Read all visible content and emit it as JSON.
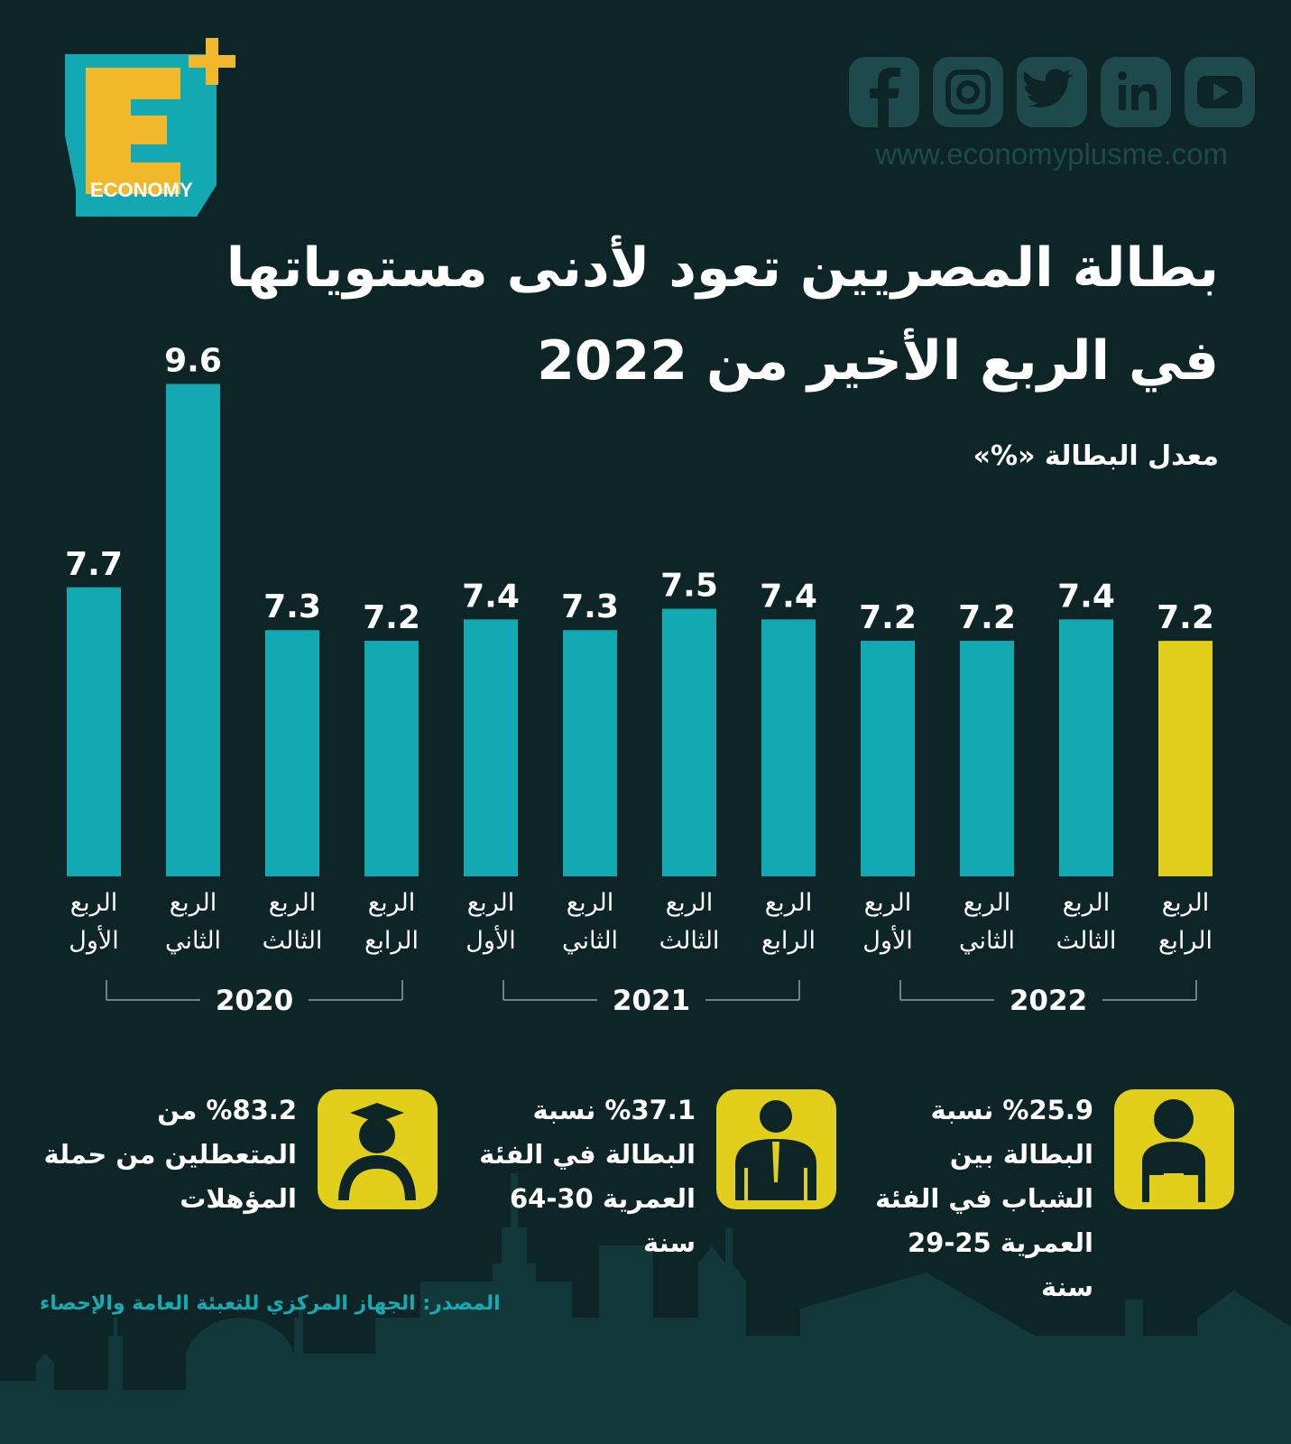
{
  "header": {
    "logo_text": "ECONOMY",
    "url": "www.economyplusme.com"
  },
  "chart_data": {
    "type": "bar",
    "title": [
      "بطالة المصريين تعود لأدنى مستوياتها",
      "في الربع الأخير من 2022"
    ],
    "subtitle": "معدل البطالة «%»",
    "categories": [
      "الربع الأول",
      "الربع الثاني",
      "الربع الثالث",
      "الربع الرابع",
      "الربع الأول",
      "الربع الثاني",
      "الربع الثالث",
      "الربع الرابع",
      "الربع الأول",
      "الربع الثاني",
      "الربع الثالث",
      "الربع الرابع"
    ],
    "group_labels": [
      "2020",
      "2021",
      "2022"
    ],
    "values": [
      7.7,
      9.6,
      7.3,
      7.2,
      7.4,
      7.3,
      7.5,
      7.4,
      7.2,
      7.2,
      7.4,
      7.2
    ],
    "colors": [
      "#13a9b3",
      "#13a9b3",
      "#13a9b3",
      "#13a9b3",
      "#13a9b3",
      "#13a9b3",
      "#13a9b3",
      "#13a9b3",
      "#13a9b3",
      "#13a9b3",
      "#13a9b3",
      "#e2cf1c"
    ],
    "ylim": [
      5,
      10
    ]
  },
  "stats": [
    "%83.2 من المتعطلين من حملة المؤهلات",
    "%37.1 نسبة البطالة في الفئة العمرية 30-64 سنة",
    "%25.9 نسبة البطالة بين الشباب في الفئة العمرية 25-29 سنة"
  ],
  "source": "المصدر: الجهاز المركزي للتعبئة العامة والإحصاء"
}
